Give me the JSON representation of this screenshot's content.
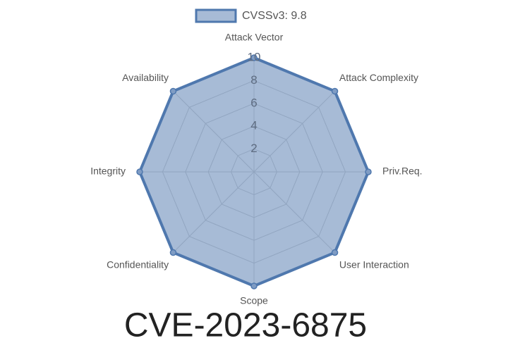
{
  "chart_data": {
    "type": "radar",
    "title": "CVE-2023-6875",
    "categories": [
      "Attack Vector",
      "Attack Complexity",
      "Priv.Req.",
      "User Interaction",
      "Scope",
      "Confidentiality",
      "Integrity",
      "Availability"
    ],
    "series": [
      {
        "name": "CVSSv3: 9.8",
        "color": "#4f78ae",
        "values": [
          10,
          10,
          10,
          10,
          10,
          10,
          10,
          10
        ]
      }
    ],
    "rlim": [
      0,
      10
    ],
    "rticks": [
      2,
      4,
      6,
      8,
      10
    ],
    "grid": true,
    "legend": "top"
  }
}
